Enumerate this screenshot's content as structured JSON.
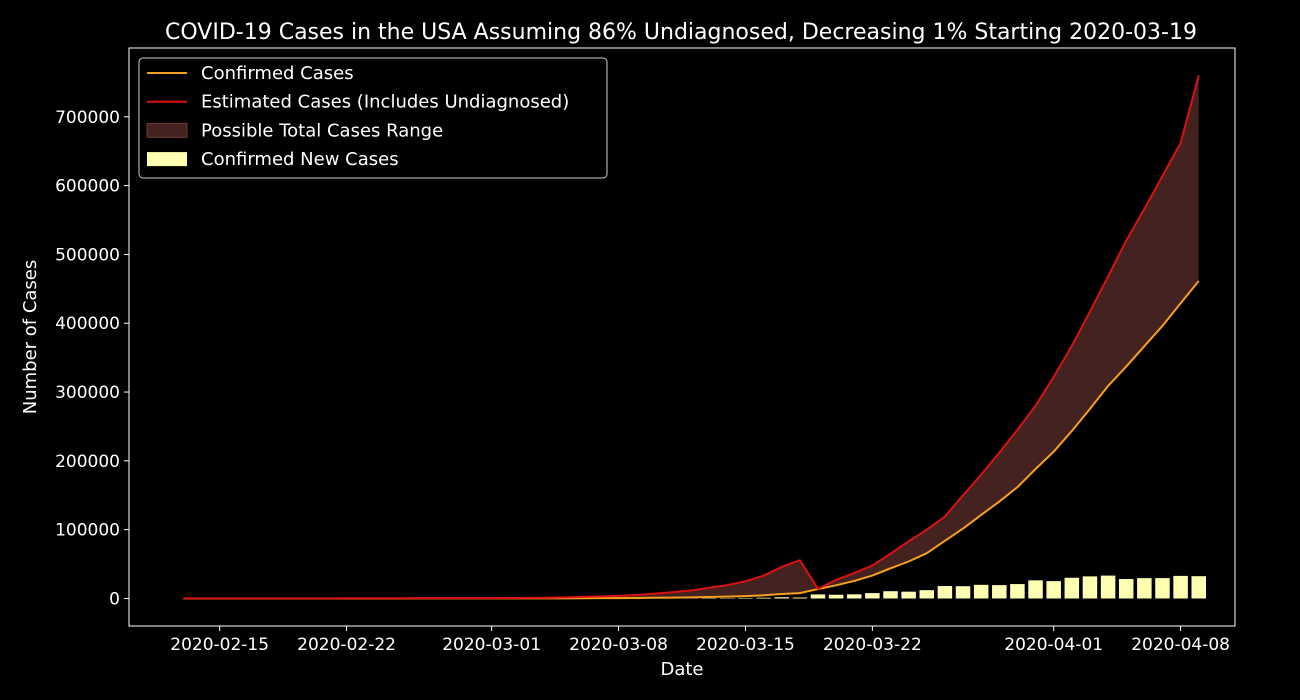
{
  "chart_data": {
    "type": "line",
    "title": "COVID-19 Cases in the USA Assuming 86% Undiagnosed, Decreasing 1% Starting 2020-03-19",
    "xlabel": "Date",
    "ylabel": "Number of Cases",
    "x_type": "date",
    "xlim": [
      "2020-02-10",
      "2020-04-11"
    ],
    "ylim": [
      -40000,
      800000
    ],
    "x_ticks": [
      "2020-02-15",
      "2020-02-22",
      "2020-03-01",
      "2020-03-08",
      "2020-03-15",
      "2020-03-22",
      "2020-04-01",
      "2020-04-08"
    ],
    "y_ticks": [
      0,
      100000,
      200000,
      300000,
      400000,
      500000,
      600000,
      700000
    ],
    "grid": false,
    "legend_position": "top-left",
    "colors": {
      "background": "#000000",
      "text": "#ffffff",
      "confirmed": "#f5a020",
      "estimated": "#dd1111",
      "range_fill": "#43221f",
      "new_cases": "#ffffb2"
    },
    "legend": [
      {
        "label": "Confirmed Cases",
        "kind": "line",
        "color": "#f5a020"
      },
      {
        "label": "Estimated Cases (Includes Undiagnosed)",
        "kind": "line",
        "color": "#dd1111"
      },
      {
        "label": "Possible Total Cases Range",
        "kind": "area",
        "color": "#43221f"
      },
      {
        "label": "Confirmed New Cases",
        "kind": "bar",
        "color": "#ffffb2"
      }
    ],
    "dates": [
      "2020-02-13",
      "2020-02-14",
      "2020-02-15",
      "2020-02-16",
      "2020-02-17",
      "2020-02-18",
      "2020-02-19",
      "2020-02-20",
      "2020-02-21",
      "2020-02-22",
      "2020-02-23",
      "2020-02-24",
      "2020-02-25",
      "2020-02-26",
      "2020-02-27",
      "2020-02-28",
      "2020-02-29",
      "2020-03-01",
      "2020-03-02",
      "2020-03-03",
      "2020-03-04",
      "2020-03-05",
      "2020-03-06",
      "2020-03-07",
      "2020-03-08",
      "2020-03-09",
      "2020-03-10",
      "2020-03-11",
      "2020-03-12",
      "2020-03-13",
      "2020-03-14",
      "2020-03-15",
      "2020-03-16",
      "2020-03-17",
      "2020-03-18",
      "2020-03-19",
      "2020-03-20",
      "2020-03-21",
      "2020-03-22",
      "2020-03-23",
      "2020-03-24",
      "2020-03-25",
      "2020-03-26",
      "2020-03-27",
      "2020-03-28",
      "2020-03-29",
      "2020-03-30",
      "2020-03-31",
      "2020-04-01",
      "2020-04-02",
      "2020-04-03",
      "2020-04-04",
      "2020-04-05",
      "2020-04-06",
      "2020-04-07",
      "2020-04-08",
      "2020-04-09"
    ],
    "series": [
      {
        "name": "Confirmed Cases",
        "values": [
          15,
          15,
          15,
          15,
          15,
          15,
          15,
          15,
          16,
          35,
          35,
          53,
          57,
          60,
          60,
          62,
          70,
          76,
          101,
          122,
          153,
          221,
          319,
          435,
          541,
          704,
          994,
          1301,
          1630,
          2183,
          2726,
          3499,
          4632,
          6421,
          7786,
          13680,
          19101,
          25493,
          33276,
          43847,
          53740,
          65778,
          83836,
          101657,
          121478,
          140886,
          161807,
          188172,
          213372,
          243453,
          275586,
          308850,
          337072,
          366614,
          396223,
          429052,
          461437
        ]
      },
      {
        "name": "Estimated Cases (Includes Undiagnosed)",
        "values": [
          107,
          107,
          107,
          107,
          107,
          107,
          107,
          107,
          114,
          250,
          250,
          379,
          407,
          429,
          429,
          443,
          500,
          543,
          721,
          871,
          1093,
          1579,
          2279,
          3107,
          3864,
          5029,
          7100,
          9293,
          11643,
          15593,
          19471,
          24993,
          33086,
          45864,
          55614,
          14000,
          27000,
          37000,
          48000,
          65000,
          83000,
          100000,
          119000,
          150000,
          180000,
          212000,
          245000,
          280000,
          322000,
          367000,
          417000,
          468000,
          520000,
          566000,
          614000,
          662000,
          760000
        ]
      },
      {
        "name": "Confirmed New Cases",
        "kind": "bar",
        "values": [
          0,
          0,
          0,
          0,
          0,
          0,
          0,
          0,
          1,
          19,
          0,
          18,
          4,
          3,
          0,
          2,
          8,
          6,
          25,
          21,
          31,
          68,
          98,
          116,
          106,
          163,
          290,
          307,
          329,
          553,
          543,
          773,
          1133,
          1789,
          1365,
          5894,
          5421,
          6000,
          7800,
          10571,
          9893,
          12038,
          18058,
          17821,
          19821,
          19408,
          20921,
          26365,
          25200,
          30081,
          32133,
          33264,
          28222,
          29542,
          29609,
          32829,
          32385
        ]
      }
    ]
  }
}
